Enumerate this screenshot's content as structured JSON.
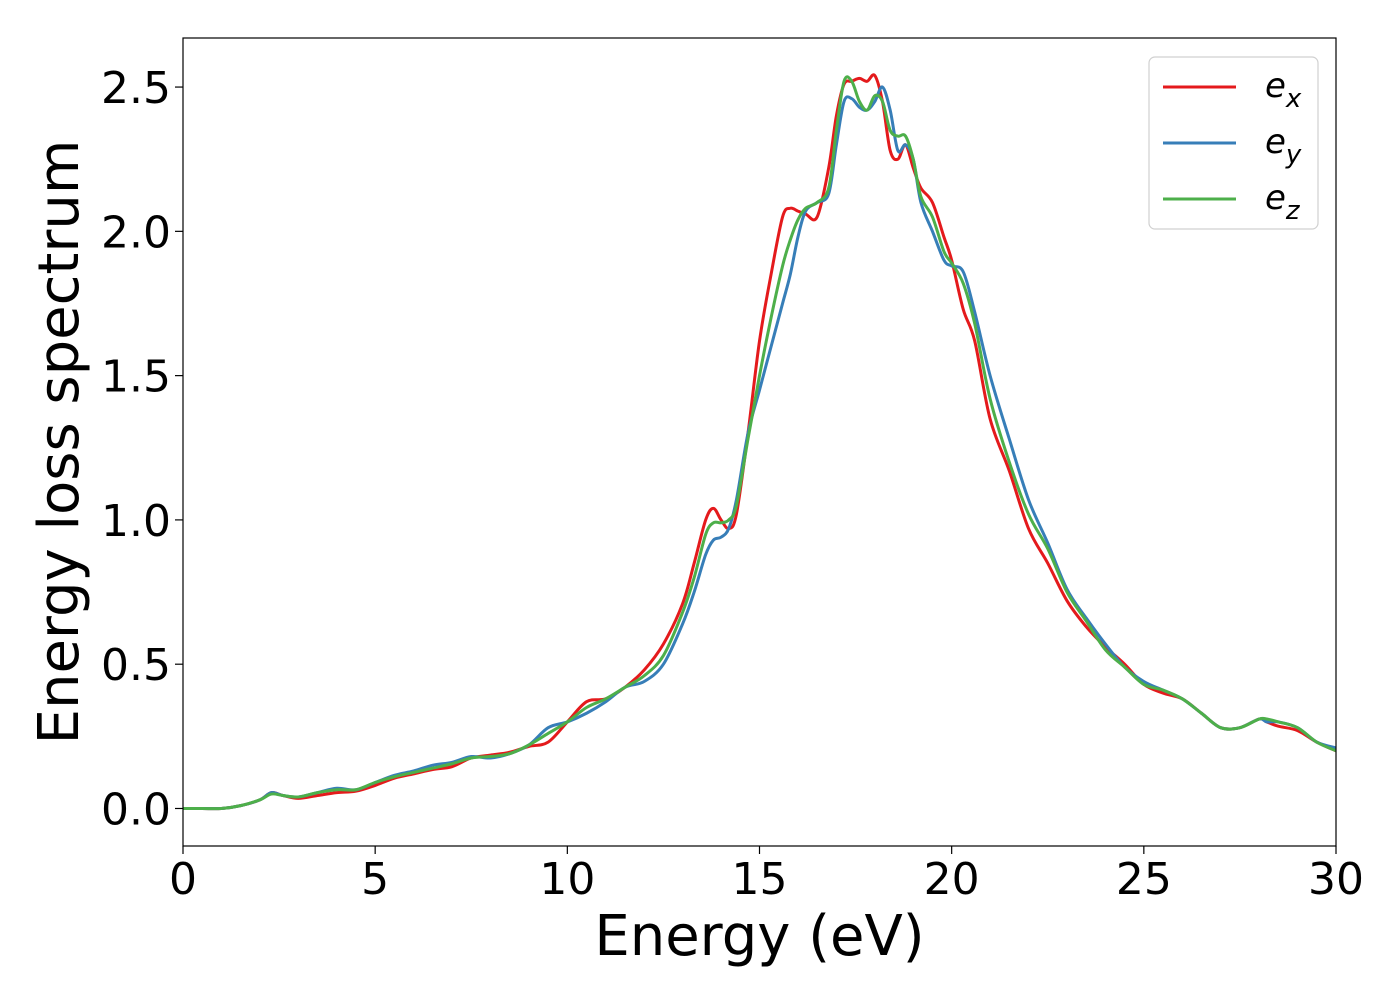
{
  "chart_data": {
    "type": "line",
    "title": "",
    "xlabel": "Energy (eV)",
    "ylabel": "Energy loss spectrum",
    "xlim": [
      0,
      30
    ],
    "ylim": [
      -0.13,
      2.67
    ],
    "xticks": [
      0,
      5,
      10,
      15,
      20,
      25,
      30
    ],
    "xtick_labels": [
      "0",
      "5",
      "10",
      "15",
      "20",
      "25",
      "30"
    ],
    "yticks": [
      0.0,
      0.5,
      1.0,
      1.5,
      2.0,
      2.5
    ],
    "ytick_labels": [
      "0.0",
      "0.5",
      "1.0",
      "1.5",
      "2.0",
      "2.5"
    ],
    "grid": false,
    "legend_position": "top-right",
    "series": [
      {
        "name": "e_x",
        "label_base": "e",
        "label_sub": "x",
        "color": "#e41a1c",
        "x": [
          0,
          0.5,
          1,
          1.5,
          2,
          2.3,
          2.6,
          3,
          3.5,
          4,
          4.5,
          5,
          5.5,
          6,
          6.5,
          7,
          7.5,
          8,
          8.5,
          9,
          9.5,
          10,
          10.5,
          11,
          11.5,
          12,
          12.5,
          13,
          13.3,
          13.6,
          13.8,
          14,
          14.2,
          14.4,
          14.7,
          15,
          15.3,
          15.6,
          15.8,
          16,
          16.2,
          16.5,
          16.8,
          17,
          17.2,
          17.4,
          17.6,
          17.8,
          18,
          18.2,
          18.4,
          18.6,
          18.8,
          19,
          19.2,
          19.5,
          19.8,
          20,
          20.3,
          20.6,
          21,
          21.5,
          22,
          22.5,
          23,
          23.5,
          24,
          24.5,
          25,
          25.5,
          26,
          26.5,
          27,
          27.5,
          28,
          28.2,
          28.5,
          29,
          29.5,
          30
        ],
        "y": [
          0.0,
          0.0,
          0.0,
          0.01,
          0.03,
          0.055,
          0.045,
          0.035,
          0.045,
          0.055,
          0.06,
          0.08,
          0.105,
          0.12,
          0.135,
          0.145,
          0.175,
          0.185,
          0.195,
          0.215,
          0.23,
          0.3,
          0.37,
          0.38,
          0.42,
          0.48,
          0.57,
          0.71,
          0.85,
          1.0,
          1.04,
          1.0,
          0.97,
          1.02,
          1.3,
          1.62,
          1.85,
          2.05,
          2.08,
          2.07,
          2.06,
          2.05,
          2.22,
          2.4,
          2.51,
          2.52,
          2.53,
          2.52,
          2.54,
          2.45,
          2.28,
          2.25,
          2.3,
          2.22,
          2.15,
          2.1,
          1.98,
          1.9,
          1.73,
          1.62,
          1.35,
          1.17,
          0.97,
          0.85,
          0.72,
          0.63,
          0.56,
          0.5,
          0.43,
          0.4,
          0.38,
          0.33,
          0.28,
          0.28,
          0.31,
          0.3,
          0.285,
          0.27,
          0.23,
          0.2
        ]
      },
      {
        "name": "e_y",
        "label_base": "e",
        "label_sub": "y",
        "color": "#377eb8",
        "x": [
          0,
          0.5,
          1,
          1.5,
          2,
          2.3,
          2.6,
          3,
          3.5,
          4,
          4.5,
          5,
          5.5,
          6,
          6.5,
          7,
          7.5,
          8,
          8.5,
          9,
          9.5,
          10,
          10.5,
          11,
          11.5,
          12,
          12.5,
          13,
          13.3,
          13.6,
          13.8,
          14,
          14.2,
          14.4,
          14.7,
          15,
          15.3,
          15.6,
          15.8,
          16,
          16.2,
          16.5,
          16.8,
          17,
          17.2,
          17.4,
          17.6,
          17.8,
          18,
          18.2,
          18.4,
          18.6,
          18.8,
          19,
          19.2,
          19.5,
          19.8,
          20,
          20.3,
          20.6,
          21,
          21.5,
          22,
          22.5,
          23,
          23.5,
          24,
          24.5,
          25,
          25.5,
          26,
          26.5,
          27,
          27.5,
          28,
          28.2,
          28.5,
          29,
          29.5,
          30
        ],
        "y": [
          0.0,
          0.0,
          0.0,
          0.01,
          0.03,
          0.055,
          0.045,
          0.04,
          0.055,
          0.07,
          0.065,
          0.09,
          0.115,
          0.13,
          0.15,
          0.16,
          0.18,
          0.175,
          0.19,
          0.22,
          0.28,
          0.3,
          0.33,
          0.37,
          0.42,
          0.44,
          0.5,
          0.64,
          0.75,
          0.88,
          0.93,
          0.94,
          0.97,
          1.07,
          1.3,
          1.45,
          1.6,
          1.75,
          1.85,
          1.98,
          2.07,
          2.1,
          2.13,
          2.3,
          2.45,
          2.46,
          2.43,
          2.42,
          2.45,
          2.5,
          2.42,
          2.28,
          2.3,
          2.25,
          2.1,
          2.0,
          1.9,
          1.88,
          1.86,
          1.72,
          1.5,
          1.28,
          1.07,
          0.92,
          0.76,
          0.66,
          0.57,
          0.49,
          0.44,
          0.41,
          0.38,
          0.33,
          0.28,
          0.28,
          0.31,
          0.3,
          0.3,
          0.28,
          0.23,
          0.21
        ]
      },
      {
        "name": "e_z",
        "label_base": "e",
        "label_sub": "z",
        "color": "#4daf4a",
        "x": [
          0,
          0.5,
          1,
          1.5,
          2,
          2.3,
          2.6,
          3,
          3.5,
          4,
          4.5,
          5,
          5.5,
          6,
          6.5,
          7,
          7.5,
          8,
          8.5,
          9,
          9.5,
          10,
          10.5,
          11,
          11.5,
          12,
          12.5,
          13,
          13.3,
          13.6,
          13.8,
          14,
          14.2,
          14.4,
          14.7,
          15,
          15.3,
          15.6,
          15.8,
          16,
          16.2,
          16.5,
          16.8,
          17,
          17.2,
          17.4,
          17.6,
          17.8,
          18,
          18.2,
          18.4,
          18.6,
          18.8,
          19,
          19.2,
          19.5,
          19.8,
          20,
          20.3,
          20.6,
          21,
          21.5,
          22,
          22.5,
          23,
          23.5,
          24,
          24.5,
          25,
          25.5,
          26,
          26.5,
          27,
          27.5,
          28,
          28.2,
          28.5,
          29,
          29.5,
          30
        ],
        "y": [
          0.0,
          0.0,
          0.0,
          0.01,
          0.03,
          0.05,
          0.045,
          0.04,
          0.055,
          0.065,
          0.065,
          0.09,
          0.11,
          0.125,
          0.14,
          0.155,
          0.175,
          0.18,
          0.19,
          0.22,
          0.26,
          0.3,
          0.35,
          0.38,
          0.42,
          0.46,
          0.53,
          0.68,
          0.8,
          0.95,
          0.99,
          0.99,
          1.0,
          1.05,
          1.28,
          1.5,
          1.7,
          1.88,
          1.97,
          2.04,
          2.08,
          2.1,
          2.15,
          2.35,
          2.52,
          2.52,
          2.45,
          2.42,
          2.47,
          2.45,
          2.35,
          2.33,
          2.33,
          2.25,
          2.12,
          2.05,
          1.93,
          1.89,
          1.82,
          1.68,
          1.42,
          1.2,
          1.02,
          0.9,
          0.75,
          0.65,
          0.55,
          0.49,
          0.43,
          0.41,
          0.38,
          0.33,
          0.28,
          0.28,
          0.31,
          0.31,
          0.3,
          0.28,
          0.23,
          0.2
        ]
      }
    ]
  }
}
